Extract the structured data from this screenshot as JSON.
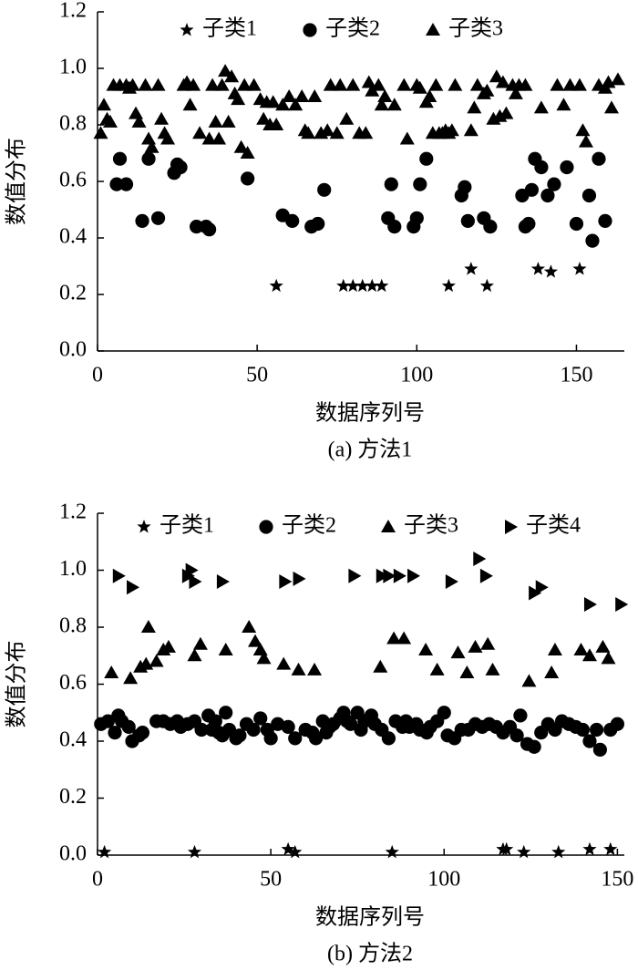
{
  "chart_data": [
    {
      "type": "scatter",
      "caption": "(a) 方法1",
      "xlabel": "数据序列号",
      "ylabel": "数值分布",
      "xlim": [
        0,
        165
      ],
      "ylim": [
        0,
        1.2
      ],
      "xticks": [
        0,
        50,
        100,
        150
      ],
      "yticks": [
        {
          "value": 0,
          "label": "0.0"
        },
        0.2,
        0.4,
        0.6,
        0.8,
        {
          "value": 1,
          "label": "1.0"
        },
        1.2
      ],
      "series": [
        {
          "name": "子类1",
          "marker": "star",
          "color": "#000000",
          "x": [
            56,
            77,
            80,
            83,
            86,
            89,
            110,
            117,
            122,
            138,
            142,
            151
          ],
          "values": [
            0.23,
            0.23,
            0.23,
            0.23,
            0.23,
            0.23,
            0.23,
            0.29,
            0.23,
            0.29,
            0.28,
            0.29
          ]
        },
        {
          "name": "子类2",
          "marker": "circle",
          "color": "#000000",
          "x": [
            6,
            7,
            9,
            14,
            16,
            19,
            24,
            25,
            26,
            31,
            34,
            35,
            47,
            58,
            61,
            67,
            69,
            71,
            91,
            92,
            93,
            99,
            100,
            101,
            103,
            114,
            115,
            116,
            121,
            123,
            133,
            134,
            135,
            136,
            137,
            139,
            141,
            143,
            147,
            150,
            154,
            155,
            157,
            159
          ],
          "values": [
            0.59,
            0.68,
            0.59,
            0.46,
            0.68,
            0.47,
            0.63,
            0.66,
            0.65,
            0.44,
            0.44,
            0.43,
            0.61,
            0.48,
            0.46,
            0.44,
            0.45,
            0.57,
            0.47,
            0.59,
            0.44,
            0.44,
            0.47,
            0.59,
            0.68,
            0.55,
            0.58,
            0.46,
            0.47,
            0.44,
            0.55,
            0.44,
            0.45,
            0.57,
            0.68,
            0.65,
            0.55,
            0.59,
            0.65,
            0.45,
            0.55,
            0.39,
            0.68,
            0.46
          ]
        },
        {
          "name": "子类3",
          "marker": "triangle",
          "color": "#000000",
          "x": [
            1,
            2,
            3,
            4,
            5,
            7,
            9,
            10,
            11,
            12,
            13,
            15,
            16,
            17,
            19,
            20,
            21,
            22,
            27,
            28,
            29,
            30,
            32,
            35,
            36,
            37,
            38,
            39,
            40,
            41,
            42,
            43,
            44,
            45,
            46,
            47,
            49,
            51,
            52,
            53,
            54,
            55,
            56,
            58,
            60,
            62,
            64,
            65,
            66,
            68,
            70,
            72,
            73,
            75,
            76,
            78,
            80,
            82,
            84,
            85,
            86,
            88,
            89,
            90,
            93,
            96,
            97,
            100,
            101,
            103,
            104,
            105,
            106,
            107,
            108,
            109,
            110,
            111,
            112,
            117,
            118,
            119,
            121,
            122,
            124,
            125,
            126,
            127,
            128,
            130,
            131,
            132,
            134,
            139,
            144,
            146,
            148,
            151,
            152,
            153,
            157,
            159,
            160,
            161,
            163
          ],
          "values": [
            0.77,
            0.87,
            0.82,
            0.81,
            0.94,
            0.94,
            0.94,
            0.93,
            0.94,
            0.84,
            0.81,
            0.94,
            0.75,
            0.72,
            0.94,
            0.82,
            0.77,
            0.75,
            0.94,
            0.95,
            0.87,
            0.94,
            0.77,
            0.75,
            0.94,
            0.81,
            0.75,
            0.94,
            0.99,
            0.81,
            0.97,
            0.91,
            0.89,
            0.72,
            0.94,
            0.7,
            0.94,
            0.89,
            0.82,
            0.88,
            0.8,
            0.88,
            0.8,
            0.87,
            0.9,
            0.87,
            0.9,
            0.78,
            0.77,
            0.9,
            0.77,
            0.78,
            0.94,
            0.77,
            0.94,
            0.82,
            0.94,
            0.77,
            0.77,
            0.95,
            0.92,
            0.94,
            0.87,
            0.9,
            0.87,
            0.94,
            0.75,
            0.94,
            0.93,
            0.88,
            0.9,
            0.77,
            0.94,
            0.77,
            0.77,
            0.78,
            0.77,
            0.78,
            0.94,
            0.78,
            0.86,
            0.94,
            0.91,
            0.92,
            0.82,
            0.97,
            0.83,
            0.95,
            0.84,
            0.94,
            0.91,
            0.94,
            0.94,
            0.86,
            0.94,
            0.87,
            0.94,
            0.94,
            0.78,
            0.74,
            0.94,
            0.93,
            0.95,
            0.86,
            0.96
          ]
        }
      ]
    },
    {
      "type": "scatter",
      "caption": "(b) 方法2",
      "xlabel": "数据序列号",
      "ylabel": "数值分布",
      "xlim": [
        0,
        152
      ],
      "ylim": [
        0,
        1.2
      ],
      "xticks": [
        0,
        50,
        100,
        150
      ],
      "yticks": [
        {
          "value": 0,
          "label": "0.0"
        },
        0.2,
        0.4,
        0.6,
        0.8,
        {
          "value": 1,
          "label": "1.0"
        },
        1.2
      ],
      "series": [
        {
          "name": "子类1",
          "marker": "star",
          "color": "#000000",
          "x": [
            2,
            28,
            55,
            57,
            85,
            117,
            118,
            123,
            133,
            142,
            148
          ],
          "values": [
            0.01,
            0.01,
            0.02,
            0.01,
            0.01,
            0.02,
            0.02,
            0.01,
            0.01,
            0.02,
            0.02
          ]
        },
        {
          "name": "子类2",
          "marker": "circle",
          "color": "#000000",
          "x": [
            1,
            3,
            5,
            6,
            7,
            9,
            10,
            12,
            13,
            17,
            19,
            21,
            23,
            24,
            26,
            28,
            30,
            32,
            33,
            34,
            35,
            36,
            37,
            38,
            40,
            41,
            43,
            45,
            47,
            49,
            50,
            52,
            55,
            57,
            60,
            62,
            63,
            65,
            66,
            67,
            68,
            70,
            71,
            72,
            73,
            75,
            76,
            77,
            79,
            80,
            82,
            84,
            86,
            88,
            89,
            90,
            92,
            93,
            95,
            96,
            98,
            100,
            101,
            103,
            105,
            107,
            109,
            111,
            113,
            115,
            117,
            119,
            121,
            122,
            124,
            126,
            128,
            130,
            132,
            134,
            136,
            138,
            140,
            142,
            144,
            145,
            148,
            150
          ],
          "values": [
            0.46,
            0.47,
            0.43,
            0.49,
            0.47,
            0.45,
            0.4,
            0.42,
            0.43,
            0.47,
            0.47,
            0.46,
            0.47,
            0.45,
            0.46,
            0.47,
            0.44,
            0.49,
            0.44,
            0.47,
            0.43,
            0.42,
            0.5,
            0.44,
            0.41,
            0.42,
            0.46,
            0.44,
            0.48,
            0.44,
            0.41,
            0.46,
            0.45,
            0.41,
            0.44,
            0.43,
            0.41,
            0.47,
            0.43,
            0.45,
            0.46,
            0.48,
            0.5,
            0.47,
            0.46,
            0.5,
            0.44,
            0.47,
            0.49,
            0.46,
            0.44,
            0.41,
            0.47,
            0.45,
            0.47,
            0.45,
            0.46,
            0.44,
            0.43,
            0.45,
            0.47,
            0.5,
            0.42,
            0.41,
            0.44,
            0.44,
            0.46,
            0.45,
            0.46,
            0.45,
            0.43,
            0.45,
            0.42,
            0.49,
            0.39,
            0.38,
            0.43,
            0.46,
            0.44,
            0.47,
            0.46,
            0.45,
            0.44,
            0.4,
            0.44,
            0.37,
            0.44,
            0.46
          ]
        },
        {
          "name": "子类3",
          "marker": "triangle",
          "color": "#000000",
          "x": [
            4,
            9.5,
            12.4,
            14,
            14.7,
            17,
            19,
            20.5,
            28,
            29.7,
            37,
            43.7,
            45.5,
            47,
            48,
            53.7,
            58,
            62.6,
            81.6,
            85.5,
            88.4,
            94.7,
            98,
            104,
            106.6,
            109,
            112.6,
            114,
            124.5,
            131,
            132,
            139.5,
            142,
            145.8,
            147.4
          ],
          "values": [
            0.64,
            0.62,
            0.66,
            0.67,
            0.8,
            0.68,
            0.72,
            0.73,
            0.7,
            0.74,
            0.72,
            0.8,
            0.75,
            0.72,
            0.69,
            0.67,
            0.65,
            0.65,
            0.66,
            0.76,
            0.76,
            0.72,
            0.65,
            0.71,
            0.64,
            0.73,
            0.74,
            0.65,
            0.61,
            0.64,
            0.72,
            0.72,
            0.7,
            0.73,
            0.69
          ]
        },
        {
          "name": "子类4",
          "marker": "right-triangle",
          "color": "#000000",
          "x": [
            6,
            10,
            26,
            27,
            28,
            36,
            54,
            58,
            74,
            82,
            84,
            87,
            91,
            102,
            110,
            112,
            126,
            128,
            142,
            151
          ],
          "values": [
            0.98,
            0.94,
            0.98,
            1.0,
            0.96,
            0.96,
            0.96,
            0.97,
            0.98,
            0.98,
            0.98,
            0.98,
            0.98,
            0.96,
            1.04,
            0.98,
            0.92,
            0.94,
            0.88,
            0.88
          ]
        }
      ]
    }
  ]
}
